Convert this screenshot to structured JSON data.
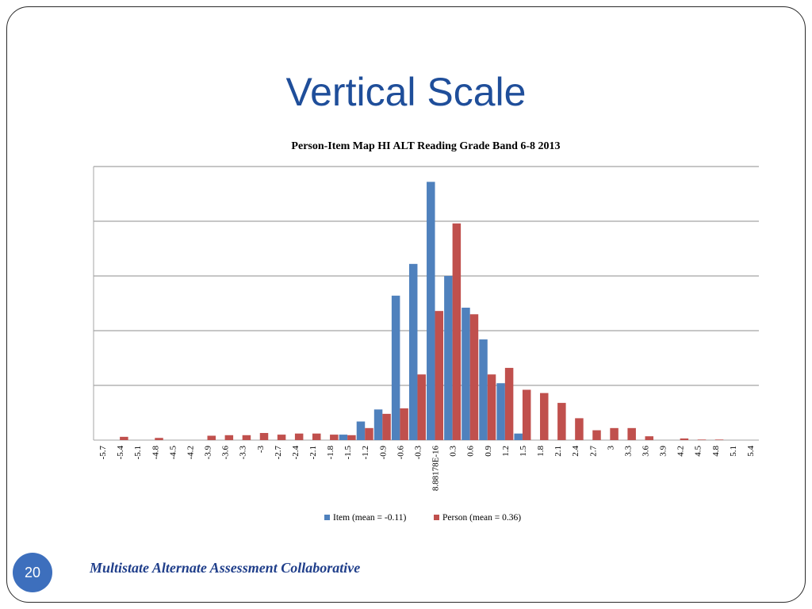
{
  "slide": {
    "title": "Vertical Scale",
    "page_number": "20",
    "organization": "Multistate Alternate Assessment Collaborative"
  },
  "colors": {
    "title": "#1f4e9a",
    "item": "#4f81bd",
    "person": "#c0504d",
    "badge": "#3d6fbd",
    "organization": "#1f3e8a"
  },
  "chart_data": {
    "type": "bar",
    "title": "Person-Item Map HI ALT Reading Grade Band 6-8 2013",
    "xlabel": "",
    "ylabel": "",
    "ylim": [
      0,
      25
    ],
    "y_gridlines": [
      0,
      5,
      10,
      15,
      20,
      25
    ],
    "y_tick_labels_shown": false,
    "legend_position": "bottom",
    "categories": [
      "-5.7",
      "-5.4",
      "-5.1",
      "-4.8",
      "-4.5",
      "-4.2",
      "-3.9",
      "-3.6",
      "-3.3",
      "-3",
      "-2.7",
      "-2.4",
      "-2.1",
      "-1.8",
      "-1.5",
      "-1.2",
      "-0.9",
      "-0.6",
      "-0.3",
      "8.88178E-16",
      "0.3",
      "0.6",
      "0.9",
      "1.2",
      "1.5",
      "1.8",
      "2.1",
      "2.4",
      "2.7",
      "3",
      "3.3",
      "3.6",
      "3.9",
      "4.2",
      "4.5",
      "4.8",
      "5.1",
      "5.4"
    ],
    "series": [
      {
        "name": "Item (mean = -0.11)",
        "color": "#4f81bd",
        "values": [
          0,
          0,
          0,
          0,
          0,
          0,
          0,
          0,
          0,
          0,
          0,
          0,
          0,
          0,
          0.5,
          1.7,
          2.8,
          13.2,
          16.1,
          23.6,
          15,
          12.1,
          9.2,
          5.2,
          0.6,
          0,
          0,
          0,
          0,
          0,
          0,
          0,
          0,
          0,
          0,
          0,
          0,
          0
        ]
      },
      {
        "name": "Person (mean = 0.36)",
        "color": "#c0504d",
        "values": [
          0,
          0.3,
          0,
          0.2,
          0,
          0,
          0.4,
          0.45,
          0.45,
          0.65,
          0.5,
          0.6,
          0.6,
          0.5,
          0.45,
          1.1,
          2.4,
          2.9,
          6,
          11.8,
          19.8,
          11.5,
          6,
          6.6,
          4.6,
          4.3,
          3.4,
          2,
          0.9,
          1.1,
          1.1,
          0.35,
          0,
          0.15,
          0.05,
          0.05,
          0,
          0
        ]
      }
    ]
  }
}
